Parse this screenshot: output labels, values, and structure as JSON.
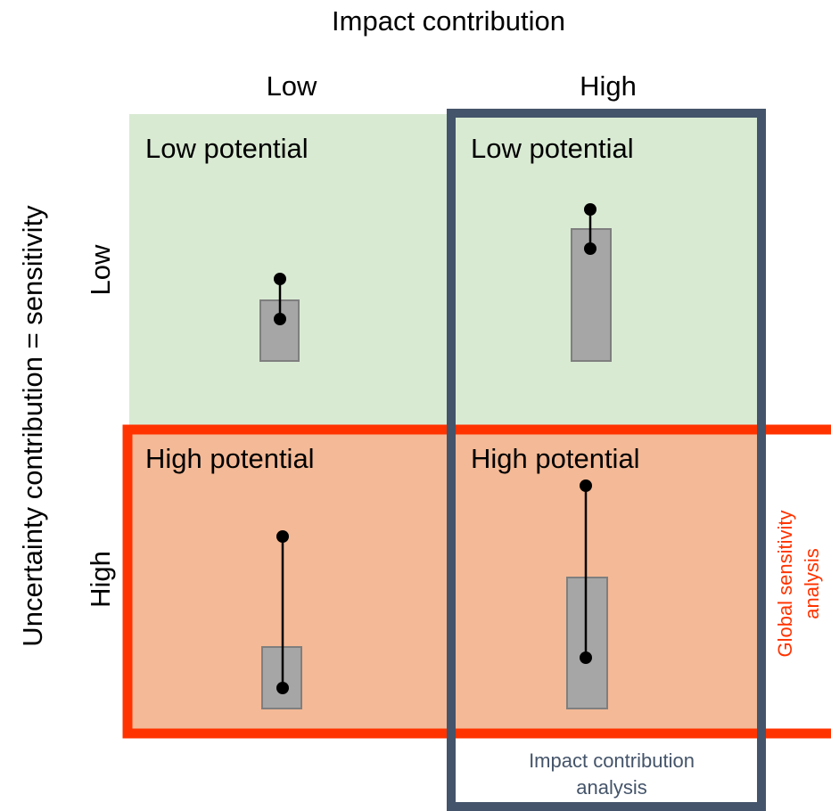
{
  "header": {
    "title": "Impact contribution"
  },
  "columns": [
    {
      "label": "Low"
    },
    {
      "label": "High"
    }
  ],
  "y_axis": {
    "title": "Uncertainty contribution = sensitivity"
  },
  "rows": [
    {
      "label": "Low"
    },
    {
      "label": "High"
    }
  ],
  "quadrants": [
    {
      "label": "Low potential",
      "fill": "#d9ead3"
    },
    {
      "label": "Low potential",
      "fill": "#d9ead3"
    },
    {
      "label": "High potential",
      "fill": "#f4b996"
    },
    {
      "label": "High potential",
      "fill": "#f4b996"
    }
  ],
  "gsa_box": {
    "label_line1": "Global sensitivity",
    "label_line2": "analysis",
    "color": "#ff3300"
  },
  "ica_box": {
    "label_line1": "Impact contribution",
    "label_line2": "analysis",
    "color": "#44546a"
  },
  "colors": {
    "bar_fill": "#a6a6a6",
    "bar_stroke": "#7f7f7f",
    "marker": "#000000"
  }
}
